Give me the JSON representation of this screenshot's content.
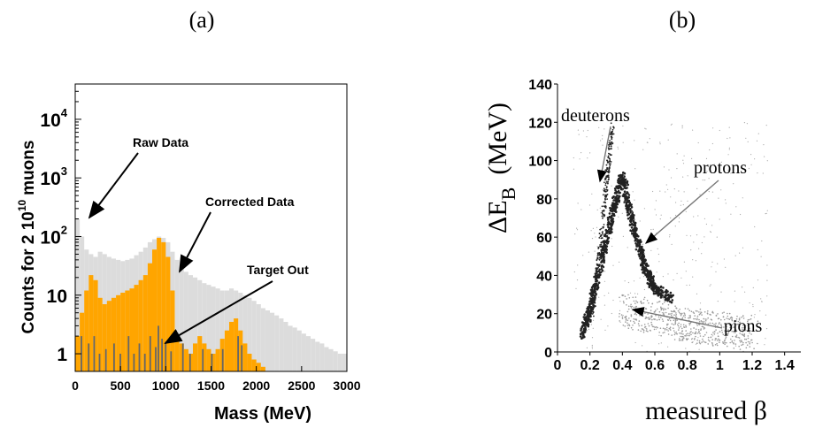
{
  "chart_data": [
    {
      "panel_label": "(a)",
      "type": "bar",
      "xlabel": "Mass (MeV)",
      "ylabel": "Counts for 2 10",
      "ylabel_sup": "10",
      "ylabel_tail": "muons",
      "xlim": [
        0,
        3000
      ],
      "ylim": [
        0.5,
        40000
      ],
      "yscale": "log",
      "x_ticks": [
        "0",
        "500",
        "1000",
        "1500",
        "2000",
        "2500",
        "3000"
      ],
      "x_tick_values": [
        0,
        500,
        1000,
        1500,
        2000,
        2500,
        3000
      ],
      "y_ticks": [
        {
          "value": 1,
          "base": "1",
          "exp": ""
        },
        {
          "value": 10,
          "base": "10",
          "exp": ""
        },
        {
          "value": 100,
          "base": "10",
          "exp": "2"
        },
        {
          "value": 1000,
          "base": "10",
          "exp": "3"
        },
        {
          "value": 10000,
          "base": "10",
          "exp": "4"
        }
      ],
      "series": [
        {
          "name": "Raw Data",
          "color": "#dcdcdc",
          "x": [
            0,
            50,
            100,
            150,
            200,
            250,
            300,
            350,
            400,
            450,
            500,
            550,
            600,
            650,
            700,
            750,
            800,
            850,
            900,
            950,
            1000,
            1050,
            1100,
            1150,
            1200,
            1250,
            1300,
            1350,
            1400,
            1450,
            1500,
            1550,
            1600,
            1650,
            1700,
            1750,
            1800,
            1850,
            1900,
            1950,
            2000,
            2050,
            2100,
            2150,
            2200,
            2250,
            2300,
            2350,
            2400,
            2450,
            2500,
            2550,
            2600,
            2650,
            2700,
            2750,
            2800,
            2850,
            2900,
            2950
          ],
          "values": [
            200,
            100,
            60,
            50,
            45,
            55,
            50,
            45,
            42,
            40,
            38,
            40,
            42,
            48,
            55,
            65,
            80,
            90,
            100,
            95,
            80,
            55,
            40,
            30,
            25,
            22,
            20,
            18,
            16,
            15,
            14,
            13,
            12,
            12,
            13,
            12,
            11,
            10,
            9,
            8,
            7,
            6,
            5.5,
            5,
            4.5,
            4,
            3.5,
            3,
            2.8,
            2.5,
            2.2,
            2,
            1.8,
            1.6,
            1.5,
            1.3,
            1.2,
            1.1,
            1,
            1
          ]
        },
        {
          "name": "Corrected Data",
          "color": "#ffa500",
          "x": [
            0,
            50,
            100,
            150,
            200,
            250,
            300,
            350,
            400,
            450,
            500,
            550,
            600,
            650,
            700,
            750,
            800,
            850,
            900,
            950,
            1000,
            1050,
            1100,
            1150,
            1200,
            1250,
            1300,
            1350,
            1400,
            1450,
            1500,
            1550,
            1600,
            1650,
            1700,
            1750,
            1800,
            1850,
            1900,
            1950,
            2000,
            2050
          ],
          "values": [
            2,
            5,
            12,
            22,
            18,
            9,
            7,
            8,
            9,
            10,
            11,
            12,
            13,
            15,
            18,
            22,
            35,
            60,
            95,
            80,
            45,
            12,
            2,
            1.5,
            1.2,
            1,
            1.5,
            2,
            1.5,
            1.2,
            1,
            1.2,
            1.8,
            2.5,
            3.5,
            4,
            2.5,
            1.5,
            1,
            0.8,
            0.7,
            0.6
          ]
        },
        {
          "name": "Target Out",
          "color": "#666666",
          "x": [
            60,
            140,
            200,
            260,
            330,
            420,
            490,
            580,
            640,
            700,
            760,
            820,
            880,
            910,
            950,
            990,
            1050,
            1180,
            1260,
            1400,
            1500,
            1620,
            1790,
            1830
          ],
          "values": [
            2,
            1.5,
            2,
            1,
            1.2,
            1.5,
            1,
            2,
            1,
            1.5,
            1,
            2,
            1.3,
            3,
            1.8,
            1.6,
            1.1,
            1.5,
            1,
            1.2,
            1,
            1.2,
            2,
            1.4
          ]
        }
      ],
      "annotations": [
        "Raw Data",
        "Corrected Data",
        "Target Out"
      ]
    },
    {
      "panel_label": "(b)",
      "type": "scatter",
      "xlabel": "measured β",
      "ylabel_main": "ΔE",
      "ylabel_sub": "B",
      "ylabel_unit": "(MeV)",
      "xlim": [
        0,
        1.5
      ],
      "ylim": [
        0,
        140
      ],
      "x_ticks": [
        "0",
        "0.2",
        "0.4",
        "0.6",
        "0.8",
        "1",
        "1.2",
        "1.4"
      ],
      "x_tick_values": [
        0,
        0.2,
        0.4,
        0.6,
        0.8,
        1.0,
        1.2,
        1.4
      ],
      "y_ticks": [
        "0",
        "20",
        "40",
        "60",
        "80",
        "100",
        "120",
        "140"
      ],
      "y_tick_values": [
        0,
        20,
        40,
        60,
        80,
        100,
        120,
        140
      ],
      "series": [
        {
          "name": "deuterons",
          "x": [
            0.22,
            0.25,
            0.28,
            0.31,
            0.34
          ],
          "y": [
            20,
            45,
            70,
            95,
            118
          ]
        },
        {
          "name": "protons",
          "x": [
            0.15,
            0.2,
            0.25,
            0.3,
            0.35,
            0.4,
            0.45,
            0.5,
            0.55,
            0.6,
            0.7
          ],
          "y": [
            8,
            22,
            40,
            58,
            76,
            92,
            72,
            55,
            42,
            33,
            28
          ]
        },
        {
          "name": "pions",
          "x": [
            0.4,
            0.6,
            0.8,
            1.0,
            1.2
          ],
          "y": [
            22,
            18,
            14,
            12,
            10
          ]
        }
      ],
      "annotations": [
        "deuterons",
        "protons",
        "pions"
      ]
    }
  ]
}
